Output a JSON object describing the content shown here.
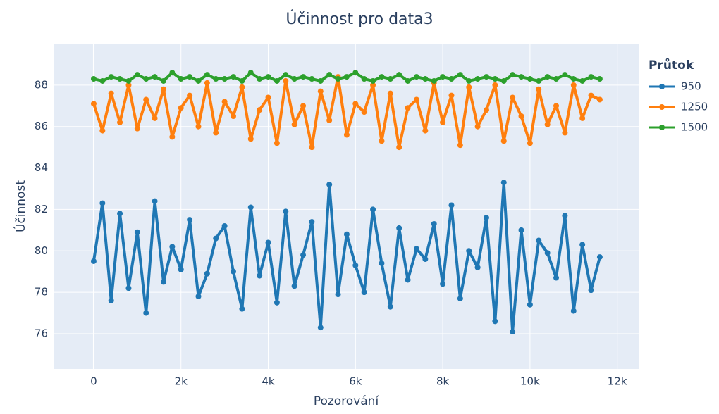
{
  "chart_data": {
    "type": "line",
    "title": "Účinnost pro data3",
    "x_label": "Pozorování",
    "y_label": "Účinnost",
    "legend_title": "Průtok",
    "legend_position": "right",
    "x": [
      0,
      200,
      400,
      600,
      800,
      1000,
      1200,
      1400,
      1600,
      1800,
      2000,
      2200,
      2400,
      2600,
      2800,
      3000,
      3200,
      3400,
      3600,
      3800,
      4000,
      4200,
      4400,
      4600,
      4800,
      5000,
      5200,
      5400,
      5600,
      5800,
      6000,
      6200,
      6400,
      6600,
      6800,
      7000,
      7200,
      7400,
      7600,
      7800,
      8000,
      8200,
      8400,
      8600,
      8800,
      9000,
      9200,
      9400,
      9600,
      9800,
      10000,
      10200,
      10400,
      10600,
      10800,
      11000,
      11200,
      11400,
      11600
    ],
    "series": [
      {
        "name": "950",
        "color": "#1f77b4",
        "values": [
          79.5,
          82.3,
          77.6,
          81.8,
          78.2,
          80.9,
          77.0,
          82.4,
          78.5,
          80.2,
          79.1,
          81.5,
          77.8,
          78.9,
          80.6,
          81.2,
          79.0,
          77.2,
          82.1,
          78.8,
          80.4,
          77.5,
          81.9,
          78.3,
          79.8,
          81.4,
          76.3,
          83.2,
          77.9,
          80.8,
          79.3,
          78.0,
          82.0,
          79.4,
          77.3,
          81.1,
          78.6,
          80.1,
          79.6,
          81.3,
          78.4,
          82.2,
          77.7,
          80.0,
          79.2,
          81.6,
          76.6,
          83.3,
          76.1,
          81.0,
          77.4,
          80.5,
          79.9,
          78.7,
          81.7,
          77.1,
          80.3,
          78.1,
          79.7
        ]
      },
      {
        "name": "1250",
        "color": "#ff7f0e",
        "values": [
          87.1,
          85.8,
          87.6,
          86.2,
          88.0,
          85.9,
          87.3,
          86.4,
          87.8,
          85.5,
          86.9,
          87.5,
          86.0,
          88.1,
          85.7,
          87.2,
          86.5,
          87.9,
          85.4,
          86.8,
          87.4,
          85.2,
          88.2,
          86.1,
          87.0,
          85.0,
          87.7,
          86.3,
          88.4,
          85.6,
          87.1,
          86.7,
          88.0,
          85.3,
          87.6,
          85.0,
          86.9,
          87.3,
          85.8,
          88.1,
          86.2,
          87.5,
          85.1,
          87.9,
          86.0,
          86.8,
          88.0,
          85.3,
          87.4,
          86.5,
          85.2,
          87.8,
          86.1,
          87.0,
          85.7,
          88.0,
          86.4,
          87.5,
          87.3
        ]
      },
      {
        "name": "1500",
        "color": "#2ca02c",
        "values": [
          88.3,
          88.2,
          88.4,
          88.3,
          88.2,
          88.5,
          88.3,
          88.4,
          88.2,
          88.6,
          88.3,
          88.4,
          88.2,
          88.5,
          88.3,
          88.3,
          88.4,
          88.2,
          88.6,
          88.3,
          88.4,
          88.2,
          88.5,
          88.3,
          88.4,
          88.3,
          88.2,
          88.5,
          88.3,
          88.4,
          88.6,
          88.3,
          88.2,
          88.4,
          88.3,
          88.5,
          88.2,
          88.4,
          88.3,
          88.2,
          88.4,
          88.3,
          88.5,
          88.2,
          88.3,
          88.4,
          88.3,
          88.2,
          88.5,
          88.4,
          88.3,
          88.2,
          88.4,
          88.3,
          88.5,
          88.3,
          88.2,
          88.4,
          88.3
        ]
      }
    ],
    "xlim": [
      -920,
      12490
    ],
    "ylim": [
      74.3,
      90.0
    ],
    "xticks": [
      0,
      {
        "value": 2000,
        "label": "2k"
      },
      {
        "value": 4000,
        "label": "4k"
      },
      {
        "value": 6000,
        "label": "6k"
      },
      {
        "value": 8000,
        "label": "8k"
      },
      {
        "value": 10000,
        "label": "10k"
      },
      {
        "value": 12000,
        "label": "12k"
      }
    ],
    "yticks": [
      76,
      78,
      80,
      82,
      84,
      86,
      88
    ],
    "grid": true
  }
}
